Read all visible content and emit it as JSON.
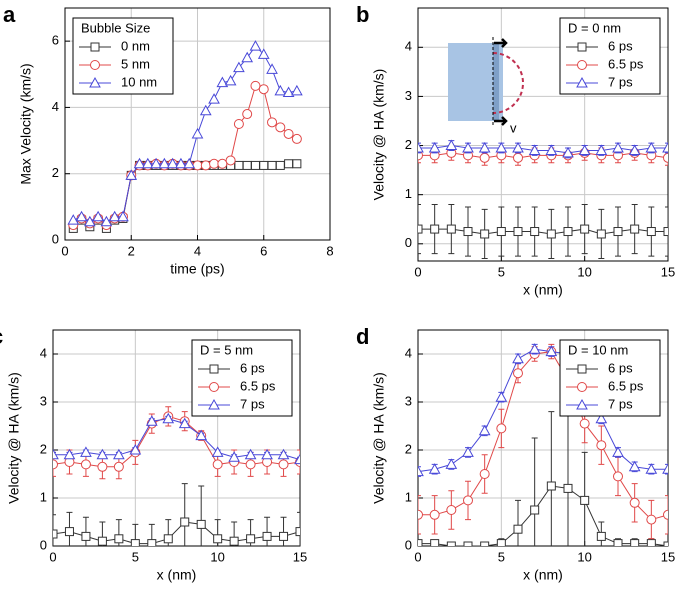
{
  "chart_data": [
    {
      "type": "line",
      "panel_label": "a",
      "x_label": "time (ps)",
      "y_label": "Max Velocity (km/s)",
      "xlim": [
        0,
        8
      ],
      "xticks": [
        0,
        2,
        4,
        6,
        8
      ],
      "ylim": [
        0,
        7
      ],
      "yticks": [
        0,
        2,
        4,
        6
      ],
      "grid": true,
      "legend_title": "Bubble Size",
      "legend_loc": "upper left",
      "x": [
        0.25,
        0.5,
        0.75,
        1.0,
        1.25,
        1.5,
        1.75,
        2.0,
        2.25,
        2.5,
        2.75,
        3.0,
        3.25,
        3.5,
        3.75,
        4.0,
        4.25,
        4.5,
        4.75,
        5.0,
        5.25,
        5.5,
        5.75,
        6.0,
        6.25,
        6.5,
        6.75,
        7.0
      ],
      "series": [
        {
          "name": "0 nm",
          "color": "#333333",
          "marker": "square",
          "values": [
            0.35,
            0.6,
            0.4,
            0.6,
            0.35,
            0.6,
            0.65,
            1.95,
            2.25,
            2.25,
            2.25,
            2.25,
            2.25,
            2.25,
            2.25,
            2.25,
            2.25,
            2.25,
            2.25,
            2.25,
            2.25,
            2.25,
            2.25,
            2.25,
            2.25,
            2.25,
            2.3,
            2.3
          ]
        },
        {
          "name": "5 nm",
          "color": "#e04848",
          "marker": "circle",
          "values": [
            0.45,
            0.65,
            0.5,
            0.65,
            0.45,
            0.65,
            0.7,
            1.95,
            2.25,
            2.25,
            2.3,
            2.25,
            2.3,
            2.25,
            2.25,
            2.25,
            2.25,
            2.3,
            2.3,
            2.4,
            3.5,
            3.8,
            4.65,
            4.55,
            3.55,
            3.4,
            3.2,
            3.05
          ]
        },
        {
          "name": "10 nm",
          "color": "#4848d8",
          "marker": "triangle",
          "values": [
            0.6,
            0.7,
            0.55,
            0.7,
            0.55,
            0.7,
            0.7,
            1.95,
            2.3,
            2.3,
            2.3,
            2.3,
            2.3,
            2.3,
            2.3,
            3.2,
            3.9,
            4.25,
            4.75,
            4.8,
            5.2,
            5.5,
            5.85,
            5.6,
            5.15,
            4.5,
            4.45,
            4.5
          ]
        }
      ]
    },
    {
      "type": "line",
      "panel_label": "b",
      "x_label": "x (nm)",
      "y_label": "Velocity @ HA (km/s)",
      "xlim": [
        0,
        15
      ],
      "xticks": [
        0,
        5,
        10,
        15
      ],
      "ylim": [
        -0.35,
        4.8
      ],
      "yticks": [
        0,
        1,
        2,
        3,
        4
      ],
      "grid": true,
      "legend_title": "D = 0 nm",
      "legend_loc": "upper right",
      "annotations": [
        "v"
      ],
      "x": [
        0,
        1,
        2,
        3,
        4,
        5,
        6,
        7,
        8,
        9,
        10,
        11,
        12,
        13,
        14,
        15
      ],
      "series": [
        {
          "name": "6 ps",
          "color": "#333333",
          "marker": "square",
          "values": [
            0.3,
            0.3,
            0.3,
            0.25,
            0.2,
            0.25,
            0.25,
            0.25,
            0.2,
            0.25,
            0.3,
            0.2,
            0.25,
            0.3,
            0.25,
            0.25
          ],
          "errors": [
            0.5,
            0.5,
            0.5,
            0.5,
            0.5,
            0.5,
            0.5,
            0.5,
            0.5,
            0.5,
            0.5,
            0.5,
            0.5,
            0.5,
            0.5,
            0.5
          ]
        },
        {
          "name": "6.5 ps",
          "color": "#e04848",
          "marker": "circle",
          "values": [
            1.8,
            1.8,
            1.85,
            1.8,
            1.75,
            1.8,
            1.75,
            1.8,
            1.8,
            1.8,
            1.85,
            1.8,
            1.8,
            1.85,
            1.8,
            1.75
          ],
          "errors": [
            0.15,
            0.15,
            0.15,
            0.15,
            0.15,
            0.15,
            0.15,
            0.15,
            0.15,
            0.15,
            0.15,
            0.15,
            0.15,
            0.15,
            0.15,
            0.15
          ]
        },
        {
          "name": "7 ps",
          "color": "#4848d8",
          "marker": "triangle",
          "values": [
            1.95,
            1.95,
            2.0,
            1.95,
            1.95,
            1.95,
            1.95,
            1.9,
            1.9,
            1.85,
            1.9,
            1.9,
            1.95,
            1.9,
            1.95,
            1.95
          ],
          "errors": [
            0.1,
            0.1,
            0.1,
            0.1,
            0.1,
            0.1,
            0.1,
            0.1,
            0.1,
            0.1,
            0.1,
            0.1,
            0.1,
            0.1,
            0.1,
            0.1
          ]
        }
      ]
    },
    {
      "type": "line",
      "panel_label": "c",
      "x_label": "x (nm)",
      "y_label": "Velocity @ HA (km/s)",
      "xlim": [
        0,
        15
      ],
      "xticks": [
        0,
        5,
        10,
        15
      ],
      "ylim": [
        0,
        4.5
      ],
      "yticks": [
        0,
        1,
        2,
        3,
        4
      ],
      "grid": true,
      "legend_title": "D = 5 nm",
      "legend_loc": "upper right",
      "x": [
        0,
        1,
        2,
        3,
        4,
        5,
        6,
        7,
        8,
        9,
        10,
        11,
        12,
        13,
        14,
        15
      ],
      "series": [
        {
          "name": "6 ps",
          "color": "#333333",
          "marker": "square",
          "values": [
            0.25,
            0.3,
            0.2,
            0.1,
            0.15,
            0.05,
            0.05,
            0.15,
            0.5,
            0.45,
            0.15,
            0.1,
            0.15,
            0.2,
            0.2,
            0.3
          ],
          "errors": [
            0.4,
            0.4,
            0.4,
            0.4,
            0.4,
            0.4,
            0.4,
            0.4,
            0.8,
            0.8,
            0.4,
            0.4,
            0.4,
            0.4,
            0.4,
            0.4
          ]
        },
        {
          "name": "6.5 ps",
          "color": "#e04848",
          "marker": "circle",
          "values": [
            1.7,
            1.75,
            1.7,
            1.65,
            1.65,
            1.95,
            2.55,
            2.7,
            2.6,
            2.3,
            1.7,
            1.75,
            1.7,
            1.75,
            1.7,
            1.75
          ],
          "errors": [
            0.25,
            0.25,
            0.25,
            0.25,
            0.25,
            0.25,
            0.2,
            0.2,
            0.2,
            0.1,
            0.25,
            0.25,
            0.25,
            0.25,
            0.25,
            0.25
          ]
        },
        {
          "name": "7 ps",
          "color": "#4848d8",
          "marker": "triangle",
          "values": [
            1.9,
            1.9,
            1.95,
            1.9,
            1.9,
            2.0,
            2.6,
            2.65,
            2.55,
            2.3,
            1.95,
            1.85,
            1.9,
            1.9,
            1.9,
            1.8
          ],
          "errors": [
            0.05,
            0.05,
            0.05,
            0.05,
            0.05,
            0.05,
            0.05,
            0.05,
            0.05,
            0.05,
            0.05,
            0.05,
            0.05,
            0.05,
            0.05,
            0.05
          ]
        }
      ]
    },
    {
      "type": "line",
      "panel_label": "d",
      "x_label": "x (nm)",
      "y_label": "Velocity @ HA (km/s)",
      "xlim": [
        0,
        15
      ],
      "xticks": [
        0,
        5,
        10,
        15
      ],
      "ylim": [
        0,
        4.5
      ],
      "yticks": [
        0,
        1,
        2,
        3,
        4
      ],
      "grid": true,
      "legend_title": "D = 10 nm",
      "legend_loc": "upper right",
      "x": [
        0,
        1,
        2,
        3,
        4,
        5,
        6,
        7,
        8,
        9,
        10,
        11,
        12,
        13,
        14,
        15
      ],
      "series": [
        {
          "name": "6 ps",
          "color": "#333333",
          "marker": "square",
          "values": [
            0.05,
            0.05,
            0,
            0,
            0,
            0.05,
            0.35,
            0.75,
            1.25,
            1.2,
            0.95,
            0.2,
            0.05,
            0.05,
            0.05,
            0
          ],
          "errors": [
            0.05,
            0.05,
            0.05,
            0.05,
            0.05,
            0.1,
            0.6,
            1.5,
            1.55,
            1.6,
            1.0,
            0.3,
            0.1,
            0.1,
            0.1,
            0.05
          ]
        },
        {
          "name": "6.5 ps",
          "color": "#e04848",
          "marker": "circle",
          "values": [
            0.65,
            0.65,
            0.75,
            0.95,
            1.5,
            2.45,
            3.6,
            4.0,
            4.05,
            3.45,
            2.55,
            2.1,
            1.45,
            0.9,
            0.55,
            0.65
          ],
          "errors": [
            0.4,
            0.4,
            0.4,
            0.4,
            0.4,
            0.4,
            0.2,
            0.15,
            0.15,
            0.3,
            0.4,
            0.4,
            0.4,
            0.4,
            0.4,
            0.4
          ]
        },
        {
          "name": "7 ps",
          "color": "#4848d8",
          "marker": "triangle",
          "values": [
            1.55,
            1.6,
            1.7,
            1.95,
            2.4,
            3.1,
            3.9,
            4.1,
            4.05,
            4.0,
            3.25,
            2.65,
            1.95,
            1.65,
            1.6,
            1.6
          ],
          "errors": [
            0.1,
            0.1,
            0.1,
            0.1,
            0.1,
            0.1,
            0.1,
            0.1,
            0.1,
            0.1,
            0.1,
            0.1,
            0.1,
            0.1,
            0.1,
            0.1
          ]
        }
      ]
    }
  ]
}
